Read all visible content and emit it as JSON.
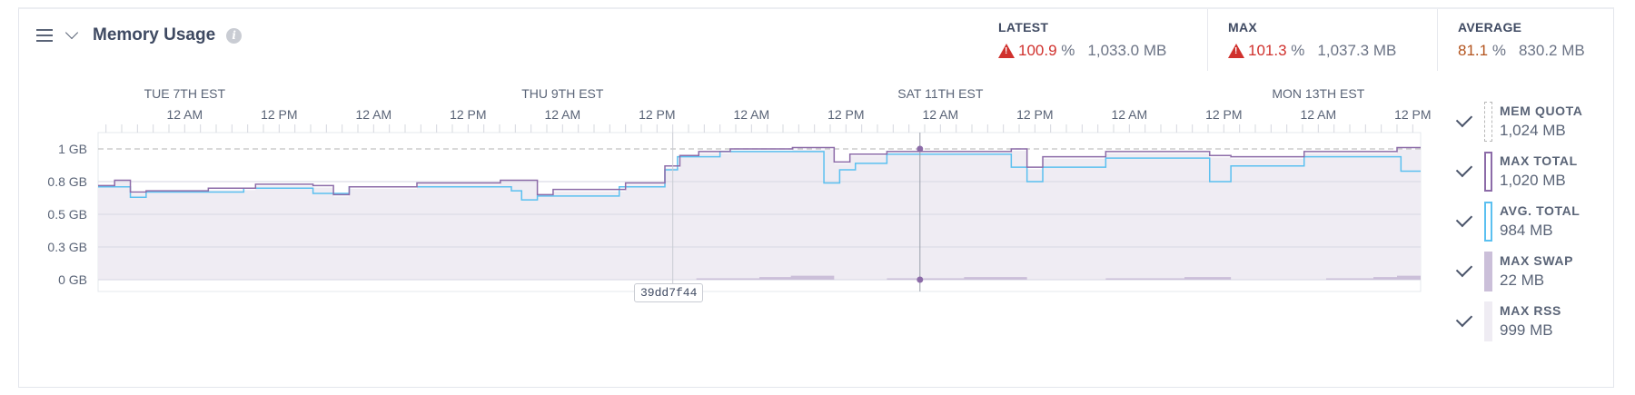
{
  "header": {
    "title": "Memory Usage",
    "info_icon": "i"
  },
  "stats": {
    "latest": {
      "label": "LATEST",
      "percent": "100.9",
      "unit": "%",
      "mb": "1,033.0 MB",
      "warning": true
    },
    "max": {
      "label": "MAX",
      "percent": "101.3",
      "unit": "%",
      "mb": "1,037.3 MB",
      "warning": true
    },
    "average": {
      "label": "AVERAGE",
      "percent": "81.1",
      "unit": "%",
      "mb": "830.2 MB",
      "warning": false
    }
  },
  "legend": [
    {
      "name": "MEM QUOTA",
      "value": "1,024 MB",
      "checked": true
    },
    {
      "name": "MAX TOTAL",
      "value": "1,020 MB",
      "checked": true
    },
    {
      "name": "AVG. TOTAL",
      "value": "984 MB",
      "checked": true
    },
    {
      "name": "MAX SWAP",
      "value": "22 MB",
      "checked": true
    },
    {
      "name": "MAX RSS",
      "value": "999 MB",
      "checked": true
    }
  ],
  "deploy_marker": "39dd7f44",
  "colors": {
    "max_total": "#8c6ba8",
    "avg_total": "#5bc0f0",
    "swap": "#cbbfd9",
    "rss": "#efecf3",
    "quota": "#c2c2c2",
    "warning": "#d0312d"
  },
  "chart_data": {
    "type": "line",
    "xunit": "hours since start",
    "xlim": [
      0,
      168
    ],
    "ylim": [
      0,
      1
    ],
    "ylabel": "GB",
    "y_ticks": [
      {
        "v": 0,
        "label": "0 GB"
      },
      {
        "v": 0.25,
        "label": "0.3 GB"
      },
      {
        "v": 0.5,
        "label": "0.5 GB"
      },
      {
        "v": 0.75,
        "label": "0.8 GB"
      },
      {
        "v": 1,
        "label": "1 GB"
      }
    ],
    "day_labels": [
      {
        "h": 11,
        "label": "TUE 7TH EST"
      },
      {
        "h": 59,
        "label": "THU 9TH EST"
      },
      {
        "h": 107,
        "label": "SAT 11TH EST"
      },
      {
        "h": 155,
        "label": "MON 13TH EST"
      }
    ],
    "hour_labels": [
      {
        "h": 11,
        "label": "12 AM"
      },
      {
        "h": 23,
        "label": "12 PM"
      },
      {
        "h": 35,
        "label": "12 AM"
      },
      {
        "h": 47,
        "label": "12 PM"
      },
      {
        "h": 59,
        "label": "12 AM"
      },
      {
        "h": 71,
        "label": "12 PM"
      },
      {
        "h": 83,
        "label": "12 AM"
      },
      {
        "h": 95,
        "label": "12 PM"
      },
      {
        "h": 107,
        "label": "12 AM"
      },
      {
        "h": 119,
        "label": "12 PM"
      },
      {
        "h": 131,
        "label": "12 AM"
      },
      {
        "h": 143,
        "label": "12 PM"
      },
      {
        "h": 155,
        "label": "12 AM"
      },
      {
        "h": 167,
        "label": "12 PM"
      }
    ],
    "quota": 1,
    "deploy_h": 73,
    "hover_h": 104.4,
    "series": [
      {
        "name": "MAX TOTAL",
        "steps": [
          [
            0,
            0.72
          ],
          [
            2.1,
            0.76
          ],
          [
            4.1,
            0.67
          ],
          [
            6.1,
            0.68
          ],
          [
            14,
            0.7
          ],
          [
            20,
            0.73
          ],
          [
            27.3,
            0.72
          ],
          [
            29.9,
            0.65
          ],
          [
            31.9,
            0.71
          ],
          [
            40.5,
            0.74
          ],
          [
            51.1,
            0.76
          ],
          [
            55.8,
            0.65
          ],
          [
            57.8,
            0.69
          ],
          [
            67,
            0.74
          ],
          [
            72,
            0.87
          ],
          [
            73.9,
            0.95
          ],
          [
            76.3,
            0.98
          ],
          [
            80.3,
            1.0
          ],
          [
            88.2,
            1.01
          ],
          [
            93.5,
            0.9
          ],
          [
            95.5,
            0.96
          ],
          [
            100.2,
            0.98
          ],
          [
            116,
            1.0
          ],
          [
            118,
            0.86
          ],
          [
            120,
            0.94
          ],
          [
            128,
            0.98
          ],
          [
            141.2,
            0.95
          ],
          [
            143.9,
            0.94
          ],
          [
            153.2,
            0.98
          ],
          [
            165,
            1.01
          ]
        ]
      },
      {
        "name": "AVG. TOTAL",
        "steps": [
          [
            0,
            0.71
          ],
          [
            4.1,
            0.63
          ],
          [
            6.1,
            0.67
          ],
          [
            18.5,
            0.7
          ],
          [
            27.3,
            0.66
          ],
          [
            31.9,
            0.71
          ],
          [
            52.5,
            0.68
          ],
          [
            53.8,
            0.61
          ],
          [
            55.8,
            0.64
          ],
          [
            66.2,
            0.71
          ],
          [
            72,
            0.84
          ],
          [
            73.6,
            0.94
          ],
          [
            79,
            0.98
          ],
          [
            92.2,
            0.74
          ],
          [
            94.2,
            0.84
          ],
          [
            96.2,
            0.89
          ],
          [
            100.2,
            0.96
          ],
          [
            116,
            0.86
          ],
          [
            118,
            0.75
          ],
          [
            120,
            0.86
          ],
          [
            128,
            0.93
          ],
          [
            141.2,
            0.75
          ],
          [
            143.9,
            0.87
          ],
          [
            153.2,
            0.94
          ],
          [
            165.5,
            0.83
          ]
        ]
      },
      {
        "name": "MAX SWAP",
        "steps": [
          [
            0,
            0
          ],
          [
            76,
            0.01
          ],
          [
            84,
            0.02
          ],
          [
            88,
            0.03
          ],
          [
            93.5,
            0
          ],
          [
            100.2,
            0.01
          ],
          [
            110,
            0.02
          ],
          [
            118,
            0
          ],
          [
            128,
            0.01
          ],
          [
            138,
            0.02
          ],
          [
            143.9,
            0
          ],
          [
            156,
            0.01
          ],
          [
            162,
            0.02
          ],
          [
            165,
            0.03
          ]
        ]
      }
    ]
  }
}
